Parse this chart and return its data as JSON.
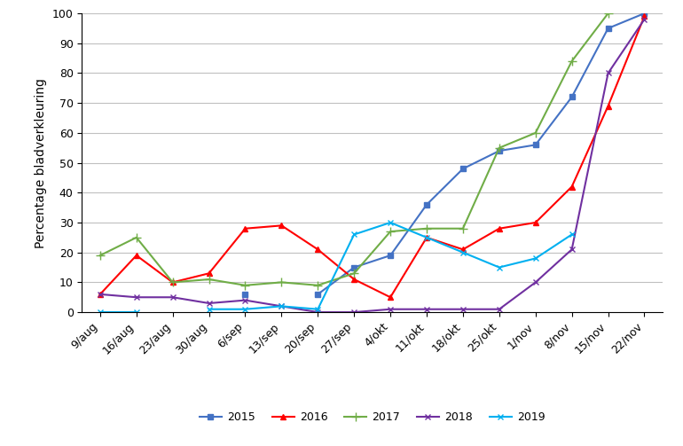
{
  "x_labels": [
    "9/aug",
    "16/aug",
    "23/aug",
    "30/aug",
    "6/sep",
    "13/sep",
    "20/sep",
    "27/sep",
    "4/okt",
    "11/okt",
    "18/okt",
    "25/okt",
    "1/nov",
    "8/nov",
    "15/nov",
    "22/nov"
  ],
  "series": {
    "2015": {
      "color": "#4472C4",
      "marker": "s",
      "values": [
        null,
        null,
        null,
        null,
        6,
        null,
        6,
        15,
        19,
        36,
        48,
        54,
        56,
        72,
        95,
        100
      ]
    },
    "2016": {
      "color": "#FF0000",
      "marker": "^",
      "values": [
        6,
        19,
        10,
        13,
        28,
        29,
        21,
        11,
        5,
        25,
        21,
        28,
        30,
        42,
        69,
        99
      ]
    },
    "2017": {
      "color": "#70AD47",
      "marker": "P",
      "values": [
        19,
        25,
        10,
        11,
        9,
        10,
        9,
        13,
        27,
        28,
        28,
        55,
        60,
        84,
        100,
        null
      ]
    },
    "2018": {
      "color": "#7030A0",
      "marker": "x",
      "values": [
        6,
        5,
        5,
        3,
        4,
        2,
        0,
        0,
        1,
        1,
        1,
        1,
        10,
        21,
        80,
        98
      ]
    },
    "2019": {
      "color": "#00B0F0",
      "marker": "x",
      "values": [
        0,
        0,
        null,
        1,
        1,
        2,
        1,
        26,
        30,
        25,
        20,
        15,
        18,
        26,
        null,
        null
      ]
    }
  },
  "ylabel": "Percentage bladverkleuring",
  "ylim": [
    0,
    100
  ],
  "yticks": [
    0,
    10,
    20,
    30,
    40,
    50,
    60,
    70,
    80,
    90,
    100
  ],
  "grid_color": "#C0C0C0",
  "bg_color": "#FFFFFF",
  "legend_order": [
    "2015",
    "2016",
    "2017",
    "2018",
    "2019"
  ]
}
